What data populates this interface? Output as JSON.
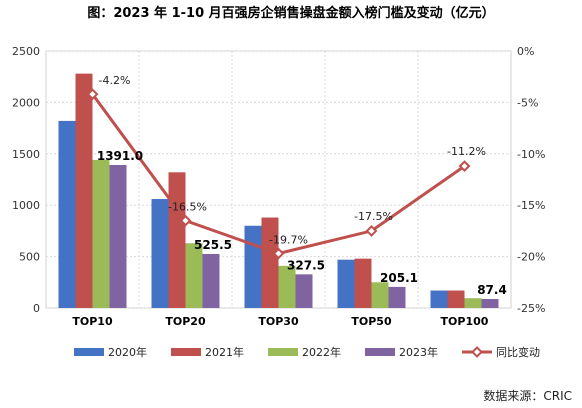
{
  "chart_data": {
    "type": "bar",
    "title": "图：2023 年 1-10 月百强房企销售操盘金额入榜门槛及变动（亿元）",
    "categories": [
      "TOP10",
      "TOP20",
      "TOP30",
      "TOP50",
      "TOP100"
    ],
    "series": [
      {
        "name": "2020年",
        "color": "#4472C4",
        "values": [
          1820,
          1060,
          800,
          470,
          170
        ]
      },
      {
        "name": "2021年",
        "color": "#C0504D",
        "values": [
          2280,
          1320,
          880,
          480,
          170
        ]
      },
      {
        "name": "2022年",
        "color": "#9BBB59",
        "values": [
          1440,
          630,
          410,
          250,
          95
        ]
      },
      {
        "name": "2023年",
        "color": "#8064A2",
        "values": [
          1391.0,
          525.5,
          327.5,
          205.1,
          87.4
        ]
      }
    ],
    "bar_data_labels": [
      "1391.0",
      "525.5",
      "327.5",
      "205.1",
      "87.4"
    ],
    "line": {
      "name": "同比变动",
      "color": "#C0504D",
      "values": [
        -4.2,
        -16.5,
        -19.7,
        -17.5,
        -11.2
      ],
      "labels": [
        "-4.2%",
        "-16.5%",
        "-19.7%",
        "-17.5%",
        "-11.2%"
      ]
    },
    "y_left": {
      "min": 0,
      "max": 2500,
      "step": 500,
      "ticks": [
        "0",
        "500",
        "1000",
        "1500",
        "2000",
        "2500"
      ]
    },
    "y_right": {
      "min": -25,
      "max": 0,
      "step": 5,
      "ticks": [
        "0%",
        "-5%",
        "-10%",
        "-15%",
        "-20%",
        "-25%"
      ]
    },
    "grid": true,
    "legend_position": "bottom",
    "source": "数据来源：CRIC"
  }
}
